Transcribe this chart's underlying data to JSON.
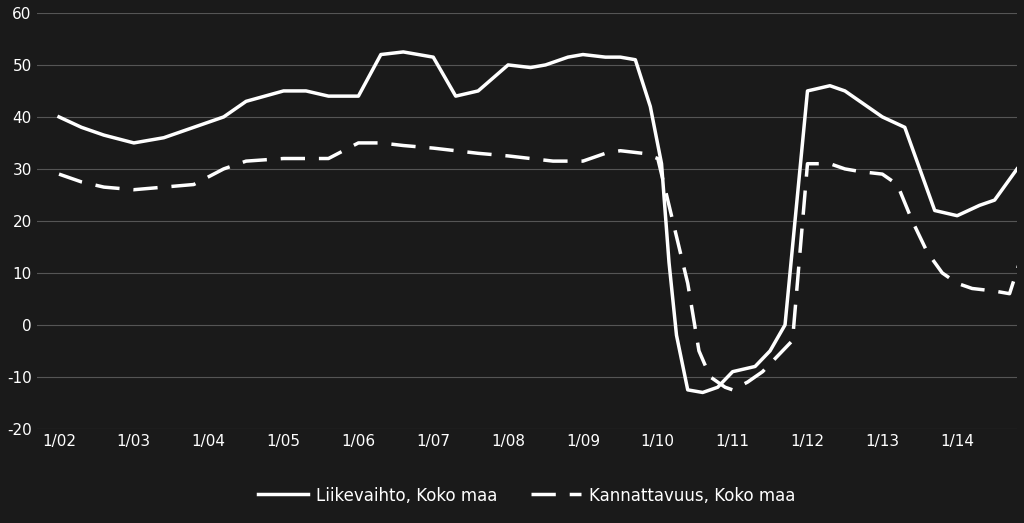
{
  "background_color": "#1a1a1a",
  "text_color": "#ffffff",
  "grid_color": "#555555",
  "xlabels": [
    "1/02",
    "1/03",
    "1/04",
    "1/05",
    "1/06",
    "1/07",
    "1/08",
    "1/09",
    "1/10",
    "1/11",
    "1/12",
    "1/13",
    "1/14"
  ],
  "ylim": [
    -20,
    60
  ],
  "yticks": [
    -20,
    -10,
    0,
    10,
    20,
    30,
    40,
    50,
    60
  ],
  "legend1": "Liikevaihto, Koko maa",
  "legend2": "Kannattavuus, Koko maa",
  "liikevaihto_x": [
    0,
    0.3,
    0.6,
    1.0,
    1.4,
    1.8,
    2.2,
    2.5,
    3.0,
    3.3,
    3.6,
    4.0,
    4.3,
    4.6,
    5.0,
    5.3,
    5.6,
    6.0,
    6.3,
    6.5,
    6.8,
    7.0,
    7.3,
    7.5,
    7.7,
    7.9,
    8.05,
    8.15,
    8.25,
    8.4,
    8.6,
    8.8,
    9.0,
    9.3,
    9.5,
    9.7,
    10.0,
    10.3,
    10.5,
    10.7,
    11.0,
    11.3,
    11.5,
    11.7,
    12.0,
    12.3,
    12.5,
    12.8
  ],
  "liikevaihto_y": [
    40,
    38,
    36.5,
    35,
    36,
    38,
    40,
    43,
    45,
    45,
    44,
    44,
    52,
    52.5,
    51.5,
    44,
    45,
    50,
    49.5,
    50,
    51.5,
    52,
    51.5,
    51.5,
    51,
    42,
    31,
    12,
    -2,
    -12.5,
    -13,
    -12,
    -9,
    -8,
    -5,
    0,
    45,
    46,
    45,
    43,
    40,
    38,
    30,
    22,
    21,
    23,
    24,
    30
  ],
  "kannattavuus_x": [
    0,
    0.3,
    0.6,
    1.0,
    1.4,
    1.8,
    2.2,
    2.5,
    3.0,
    3.3,
    3.6,
    4.0,
    4.3,
    4.6,
    5.0,
    5.3,
    5.6,
    6.0,
    6.3,
    6.6,
    7.0,
    7.3,
    7.5,
    7.8,
    8.0,
    8.2,
    8.4,
    8.55,
    8.7,
    8.9,
    9.0,
    9.2,
    9.4,
    9.6,
    9.8,
    10.0,
    10.3,
    10.5,
    10.7,
    11.0,
    11.2,
    11.4,
    11.6,
    11.8,
    12.0,
    12.2,
    12.5,
    12.7,
    12.9
  ],
  "kannattavuus_y": [
    29,
    27.5,
    26.5,
    26,
    26.5,
    27,
    30,
    31.5,
    32,
    32,
    32,
    35,
    35,
    34.5,
    34,
    33.5,
    33,
    32.5,
    32,
    31.5,
    31.5,
    33,
    33.5,
    33,
    32,
    20,
    8,
    -5,
    -10,
    -12,
    -12.5,
    -11,
    -9,
    -6,
    -3,
    31,
    31,
    30,
    29.5,
    29,
    27,
    20,
    14,
    10,
    8,
    7,
    6.5,
    6,
    15
  ]
}
